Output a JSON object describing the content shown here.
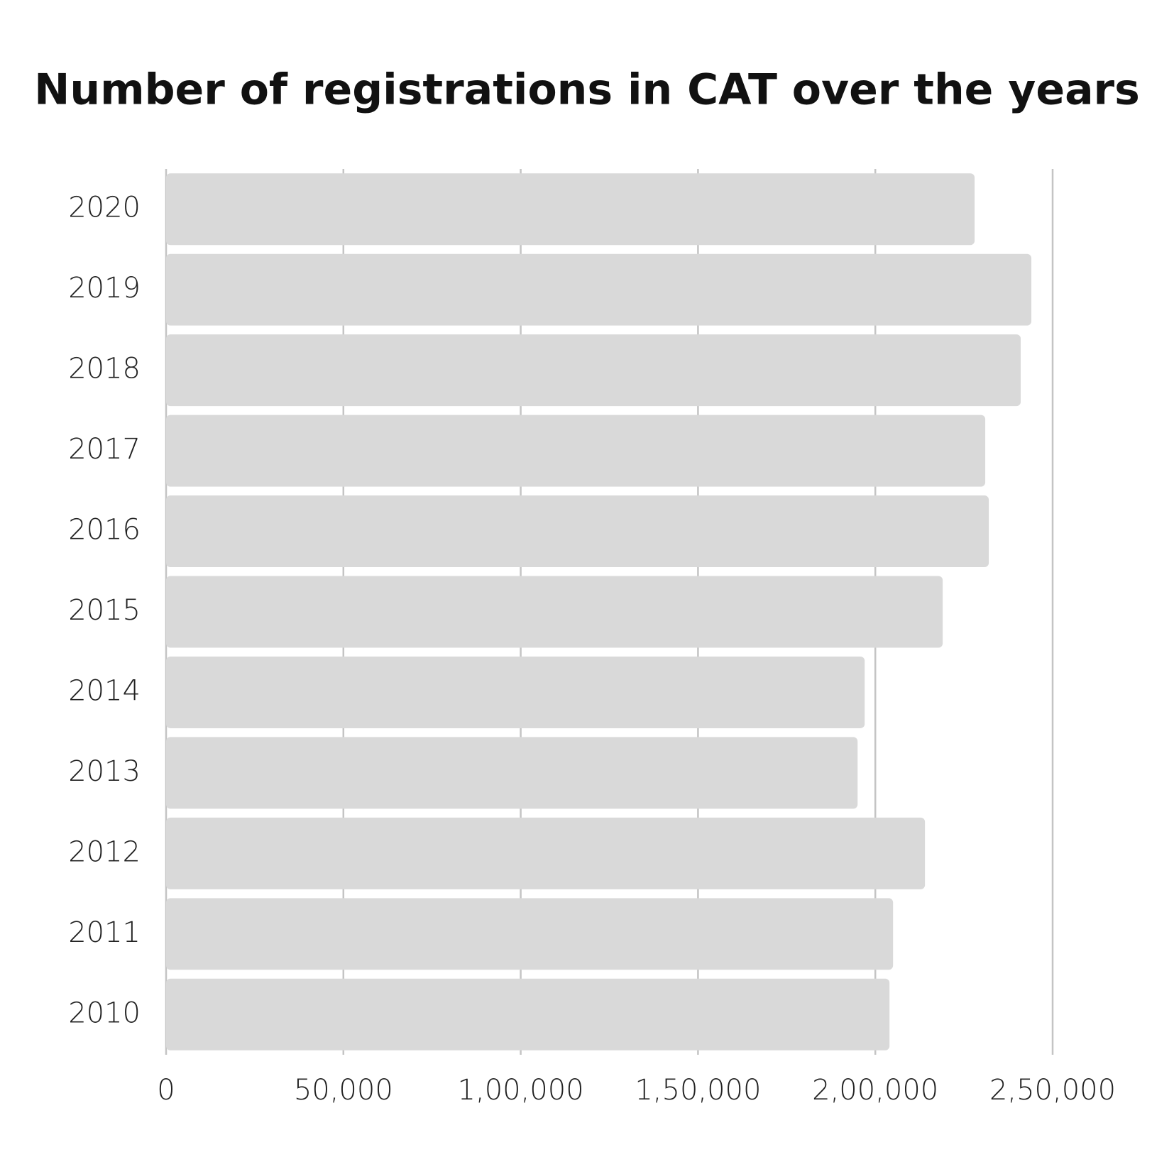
{
  "chart_data": {
    "type": "hbar",
    "title": "Number of registrations in CAT over the years",
    "categories": [
      "2020",
      "2019",
      "2018",
      "2017",
      "2016",
      "2015",
      "2014",
      "2013",
      "2012",
      "2011",
      "2010"
    ],
    "values": [
      228000,
      244000,
      241000,
      231000,
      232000,
      219000,
      197000,
      195000,
      214000,
      205000,
      204000
    ],
    "color": "#d9d9d9",
    "xlim": [
      0,
      250000
    ],
    "xticks": [
      0,
      {
        "value": 50000,
        "label": "50,000"
      },
      {
        "value": 100000,
        "label": "1,00,000"
      },
      {
        "value": 150000,
        "label": "1,50,000"
      },
      {
        "value": 200000,
        "label": "2,00,000"
      },
      {
        "value": 250000,
        "label": "2,50,000"
      }
    ],
    "grid": true
  }
}
